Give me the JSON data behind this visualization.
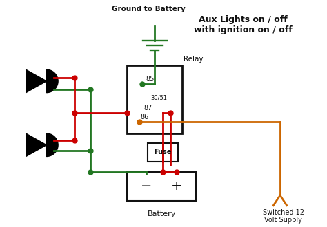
{
  "title": "Aux Lights on / off\nwith ignition on / off",
  "ground_label": "Ground to Battery",
  "relay_label": "Relay",
  "fuse_label": "Fuse",
  "battery_label": "Battery",
  "supply_label": "Switched 12\nVolt Supply",
  "bg_color": "#ffffff",
  "red": "#cc0000",
  "green": "#227722",
  "orange": "#cc6600",
  "black": "#111111",
  "figsize": [
    4.74,
    3.3
  ],
  "dpi": 100
}
